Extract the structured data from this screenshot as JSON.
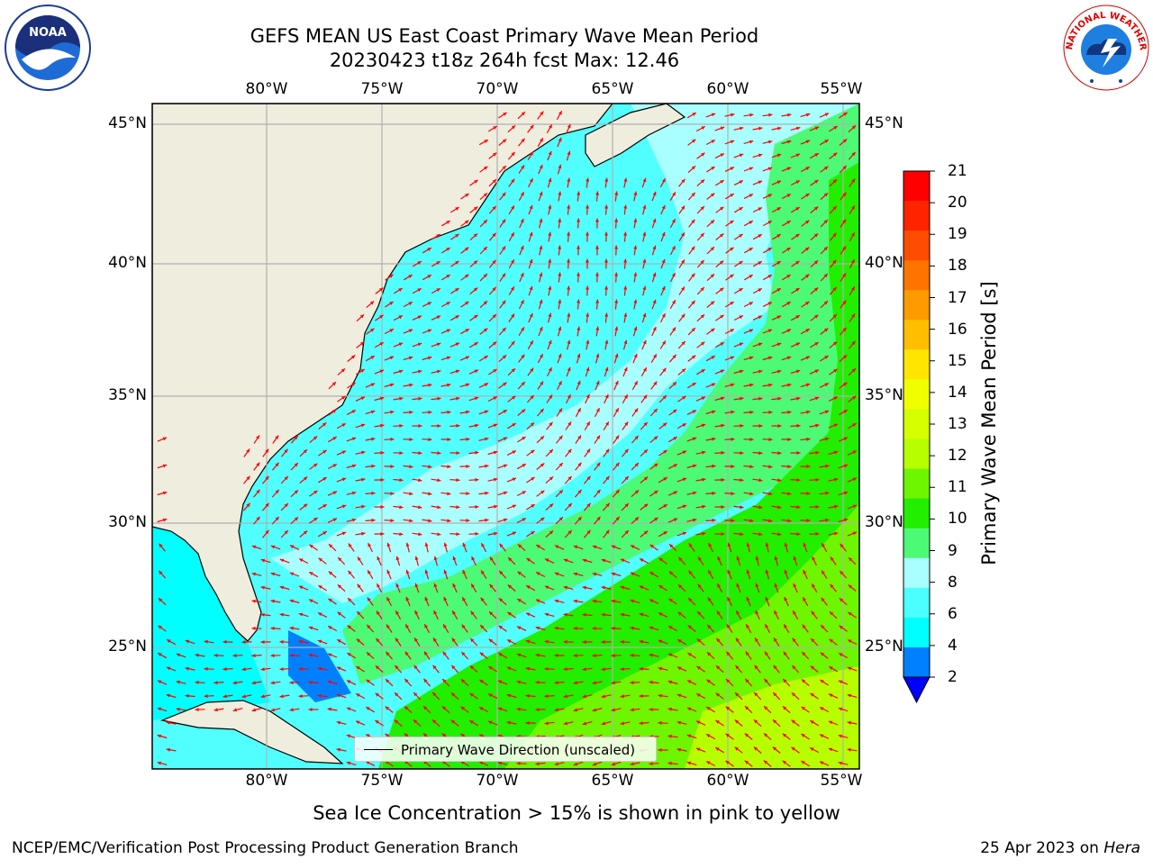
{
  "title": {
    "line1": "GEFS MEAN US East Coast Primary Wave Mean Period",
    "line2": "20230423 t18z 264h fcst   Max: 12.46"
  },
  "map": {
    "lon_labels": [
      "80°W",
      "75°W",
      "70°W",
      "65°W",
      "60°W",
      "55°W"
    ],
    "lat_labels": [
      "45°N",
      "40°N",
      "35°N",
      "30°N",
      "25°N"
    ],
    "land_color": "#efedde",
    "grid_color": "#b0b0b0",
    "arrow_color": "#ff0000"
  },
  "colorbar": {
    "title": "Primary Wave Mean Period [s]",
    "ticks": [
      "21",
      "20",
      "19",
      "18",
      "17",
      "16",
      "15",
      "14",
      "13",
      "12",
      "11",
      "10",
      "9",
      "8",
      "6",
      "4",
      "2"
    ],
    "colors_top_to_bottom": [
      "#ff0000",
      "#ff2400",
      "#ff4d00",
      "#ff7300",
      "#ff9a00",
      "#ffbf00",
      "#ffe600",
      "#f0ff00",
      "#d6ff00",
      "#b7ff00",
      "#6ef500",
      "#22ee00",
      "#4cfa76",
      "#a9ffff",
      "#4cffff",
      "#00ffff",
      "#0080ff"
    ],
    "underflow_color": "#0000ff"
  },
  "legend": {
    "label": "Primary Wave Direction (unscaled)"
  },
  "note": "Sea Ice Concentration > 15% is shown in pink to yellow",
  "footer": {
    "left": "NCEP/EMC/Verification Post Processing Product Generation Branch",
    "right_date": "25 Apr 2023 on ",
    "right_machine": "Hera"
  },
  "logos": {
    "left_text": "NOAA",
    "right_text": "NATIONAL WEATHER SERVICE"
  }
}
